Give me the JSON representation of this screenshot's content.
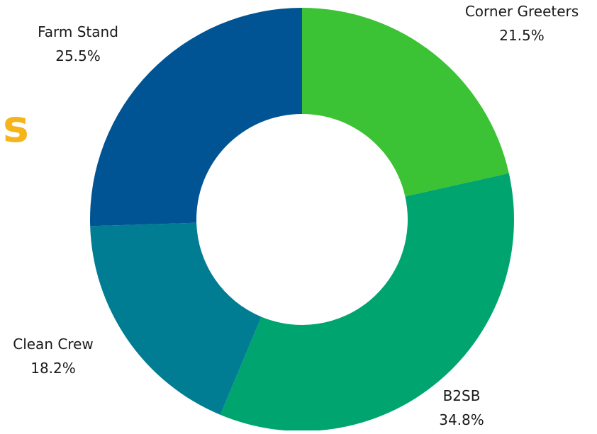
{
  "page_fragment": {
    "text": "s",
    "color": "#f4b41a"
  },
  "chart_data": {
    "type": "pie",
    "style": "donut",
    "title": "",
    "categories": [
      "Corner Greeters",
      "B2SB",
      "Clean Crew",
      "Farm Stand"
    ],
    "values": [
      21.5,
      34.8,
      18.2,
      25.5
    ],
    "labels": [
      "21.5%",
      "34.8%",
      "18.2%",
      "25.5%"
    ],
    "colors": [
      "#3cc235",
      "#00a46f",
      "#007d93",
      "#005494"
    ],
    "start": "12 o'clock",
    "direction": "clockwise",
    "legend": "none"
  }
}
